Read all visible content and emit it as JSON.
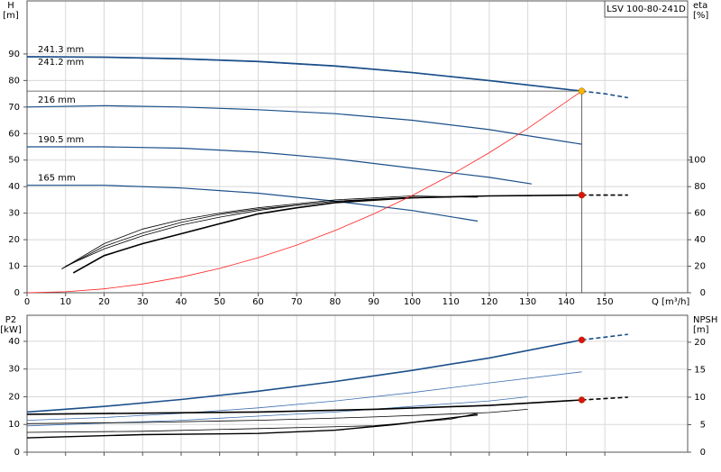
{
  "chart_data": [
    {
      "type": "line",
      "annotation": "LSV 100-80-241D",
      "ylabel": [
        "H",
        "[m]"
      ],
      "y2label": [
        "eta",
        "[%]"
      ],
      "xlabel": "Q [m³/h]",
      "xlim": [
        0,
        171.5
      ],
      "xticks": [
        0,
        10,
        20,
        30,
        40,
        50,
        60,
        70,
        80,
        90,
        100,
        110,
        120,
        130,
        140,
        150
      ],
      "xtick_labels": true,
      "ylim": [
        0,
        110
      ],
      "yticks": [
        0,
        10,
        20,
        30,
        40,
        50,
        60,
        70,
        80,
        90
      ],
      "y2lim": [
        0,
        220
      ],
      "y2ticks": [
        0,
        20,
        40,
        60,
        80,
        100
      ],
      "grid": true,
      "series": [
        {
          "name": "241.3 mm",
          "color": "#1b4f8a",
          "width": 1.6,
          "x": [
            0,
            20,
            40,
            60,
            80,
            100,
            120,
            144
          ],
          "values": [
            89,
            88.8,
            88.2,
            87.2,
            85.5,
            83,
            80,
            76
          ]
        },
        {
          "name": "241.2 mm",
          "color": "#1b4f8a",
          "width": 1.2,
          "x": [
            0,
            20,
            40,
            60,
            80,
            100,
            120,
            144
          ],
          "values": [
            88.9,
            88.7,
            88.1,
            87.1,
            85.4,
            82.9,
            79.9,
            76
          ]
        },
        {
          "color": "#1b4f8a",
          "width": 1.6,
          "dash": true,
          "x": [
            144,
            150,
            156
          ],
          "values": [
            76,
            75,
            73.5
          ]
        },
        {
          "name": "216 mm",
          "color": "#1b4f8a",
          "width": 1.2,
          "x": [
            0,
            20,
            40,
            60,
            80,
            100,
            120,
            144
          ],
          "values": [
            70,
            70.5,
            70,
            69,
            67.5,
            65,
            61.5,
            56
          ]
        },
        {
          "name": "190.5 mm",
          "color": "#1b4f8a",
          "width": 1.2,
          "x": [
            0,
            20,
            40,
            60,
            80,
            100,
            120,
            131
          ],
          "values": [
            55,
            55,
            54.5,
            53,
            50.5,
            47,
            43.5,
            41
          ]
        },
        {
          "name": "165 mm",
          "color": "#1b4f8a",
          "width": 1.2,
          "x": [
            0,
            20,
            40,
            60,
            80,
            100,
            117
          ],
          "values": [
            40.5,
            40.5,
            39.5,
            37.5,
            34.5,
            31,
            27
          ]
        },
        {
          "color": "#000000",
          "width": 1.6,
          "axis": "y2",
          "x": [
            12,
            20,
            30,
            40,
            50,
            60,
            70,
            80,
            100,
            120,
            144
          ],
          "values": [
            15,
            28,
            37,
            44.5,
            52,
            59.5,
            64,
            68,
            71.6,
            73,
            73.6
          ]
        },
        {
          "color": "#000000",
          "width": 1.6,
          "dash": true,
          "axis": "y2",
          "x": [
            144,
            156
          ],
          "values": [
            73.6,
            73.6
          ]
        },
        {
          "color": "#000000",
          "width": 0.8,
          "axis": "y2",
          "x": [
            10,
            20,
            30,
            40,
            50,
            60,
            70,
            80,
            100,
            110
          ],
          "values": [
            20,
            33,
            43,
            51,
            57,
            62,
            66,
            69,
            72,
            72
          ]
        },
        {
          "color": "#000000",
          "width": 0.8,
          "axis": "y2",
          "x": [
            9,
            20,
            30,
            40,
            50,
            60,
            80,
            100,
            120,
            131
          ],
          "values": [
            18,
            35,
            45,
            53,
            59,
            63,
            69,
            72,
            73,
            73
          ]
        },
        {
          "color": "#000000",
          "width": 0.8,
          "axis": "y2",
          "x": [
            9,
            20,
            30,
            40,
            50,
            60,
            80,
            100,
            117
          ],
          "values": [
            18,
            37,
            48,
            55,
            60,
            64,
            70,
            73,
            72
          ]
        },
        {
          "color": "#ff2020",
          "width": 0.8,
          "x": [
            0,
            10,
            20,
            30,
            40,
            50,
            60,
            70,
            80,
            90,
            100,
            110,
            120,
            130,
            144
          ],
          "values": [
            0,
            0.37,
            1.47,
            3.3,
            5.86,
            9.16,
            13.19,
            17.96,
            23.46,
            29.69,
            36.65,
            44.35,
            52.78,
            61.94,
            76
          ]
        }
      ],
      "points": [
        {
          "x": 144,
          "y": 76,
          "color": "#f5b800",
          "guide": true
        },
        {
          "x": 144,
          "y": 73.6,
          "axis": "y2",
          "color": "#e01010"
        }
      ]
    },
    {
      "type": "line",
      "ylabel": [
        "P2",
        "[kW]"
      ],
      "y2label": [
        "NPSH",
        "[m]"
      ],
      "xlim": [
        0,
        171.5
      ],
      "xticks": [
        0,
        10,
        20,
        30,
        40,
        50,
        60,
        70,
        80,
        90,
        100,
        110,
        120,
        130,
        140,
        150
      ],
      "xtick_labels": false,
      "ylim": [
        0,
        49.4
      ],
      "yticks": [
        0,
        10,
        20,
        30,
        40
      ],
      "y2lim": [
        0,
        24.9
      ],
      "y2ticks": [
        0,
        5,
        10,
        15,
        20
      ],
      "grid": true,
      "series": [
        {
          "color": "#1b4f8a",
          "width": 1.6,
          "x": [
            0,
            20,
            40,
            60,
            80,
            100,
            120,
            144
          ],
          "values": [
            14.5,
            16.5,
            19,
            22,
            25.5,
            29.5,
            34,
            40.5
          ]
        },
        {
          "color": "#1b4f8a",
          "width": 1.6,
          "dash": true,
          "x": [
            144,
            156
          ],
          "values": [
            40.5,
            42.5
          ]
        },
        {
          "color": "#3b6fb0",
          "width": 0.8,
          "x": [
            0,
            20,
            40,
            60,
            80,
            100,
            120,
            144
          ],
          "values": [
            11.5,
            12.5,
            14,
            16,
            18.5,
            21.5,
            25,
            29
          ]
        },
        {
          "color": "#3b6fb0",
          "width": 0.8,
          "x": [
            0,
            20,
            40,
            60,
            80,
            100,
            120,
            130
          ],
          "values": [
            9.5,
            10.5,
            11.5,
            13,
            14.5,
            16.5,
            18.5,
            20
          ]
        },
        {
          "color": "#000000",
          "width": 1.6,
          "axis": "y2",
          "x": [
            0,
            30,
            60,
            90,
            120,
            144
          ],
          "values": [
            6.9,
            7.1,
            7.3,
            7.8,
            8.5,
            9.5
          ]
        },
        {
          "color": "#000000",
          "width": 1.6,
          "dash": true,
          "axis": "y2",
          "x": [
            144,
            156
          ],
          "values": [
            9.5,
            10
          ]
        },
        {
          "color": "#000000",
          "width": 0.8,
          "axis": "y2",
          "x": [
            0,
            30,
            60,
            90,
            120,
            130
          ],
          "values": [
            5.2,
            5.4,
            5.8,
            6.4,
            7.2,
            7.8
          ]
        },
        {
          "color": "#000000",
          "width": 0.8,
          "axis": "y2",
          "x": [
            0,
            30,
            60,
            90,
            110,
            117
          ],
          "values": [
            3.6,
            3.8,
            4.3,
            4.8,
            6,
            7.1
          ]
        },
        {
          "color": "#000000",
          "width": 1.4,
          "axis": "y2",
          "x": [
            0,
            30,
            60,
            80,
            95,
            117
          ],
          "values": [
            2.6,
            3.2,
            3.4,
            4,
            5,
            6.8
          ]
        }
      ],
      "points": [
        {
          "x": 144,
          "y": 40.5,
          "color": "#e01010"
        },
        {
          "x": 144,
          "y": 9.5,
          "axis": "y2",
          "color": "#e01010"
        }
      ]
    }
  ]
}
